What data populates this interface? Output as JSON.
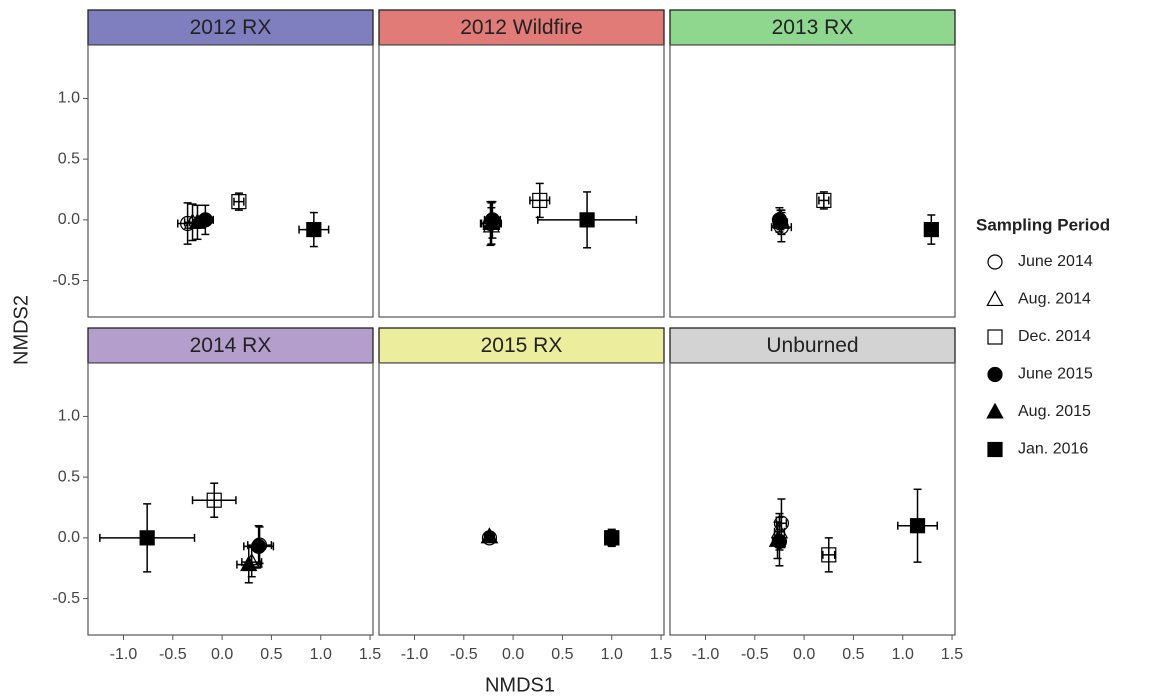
{
  "chart_data": {
    "type": "scatter",
    "x_label": "NMDS1",
    "y_label": "NMDS2",
    "legend_title": "Sampling Period",
    "legend_position": "right",
    "xlim": [
      -1.36,
      1.53
    ],
    "ylim": [
      -0.8,
      1.44
    ],
    "xticks": [
      {
        "value": -1.0,
        "label": "-1.0"
      },
      -0.5,
      {
        "value": 0.0,
        "label": "0.0"
      },
      0.5,
      {
        "value": 1.0,
        "label": "1.0"
      },
      1.5
    ],
    "yticks": [
      -0.5,
      {
        "value": 0.0,
        "label": "0.0"
      },
      0.5,
      {
        "value": 1.0,
        "label": "1.0"
      }
    ],
    "series": [
      {
        "name": "June 2014",
        "marker": "circle",
        "filled": false
      },
      {
        "name": "Aug. 2014",
        "marker": "triangle",
        "filled": false
      },
      {
        "name": "Dec. 2014",
        "marker": "square",
        "filled": false
      },
      {
        "name": "June 2015",
        "marker": "circle",
        "filled": true
      },
      {
        "name": "Aug. 2015",
        "marker": "triangle",
        "filled": true
      },
      {
        "name": "Jan. 2016",
        "marker": "square",
        "filled": true
      }
    ],
    "panels": [
      {
        "title": "2012 RX",
        "color": "#7f7fbf",
        "points": [
          {
            "x": -0.35,
            "y": -0.03,
            "xerr": 0.1,
            "yerr": 0.17
          },
          {
            "x": -0.3,
            "y": -0.02,
            "xerr": 0.08,
            "yerr": 0.15
          },
          {
            "x": 0.17,
            "y": 0.15,
            "xerr": 0.05,
            "yerr": 0.07
          },
          {
            "x": -0.17,
            "y": 0.0,
            "xerr": 0.08,
            "yerr": 0.12
          },
          {
            "x": -0.25,
            "y": -0.02,
            "xerr": 0.08,
            "yerr": 0.14
          },
          {
            "x": 0.93,
            "y": -0.08,
            "xerr": 0.15,
            "yerr": 0.14
          }
        ]
      },
      {
        "title": "2012 Wildfire",
        "color": "#e07b78",
        "points": [
          {
            "x": -0.23,
            "y": -0.03,
            "xerr": 0.1,
            "yerr": 0.18
          },
          {
            "x": -0.22,
            "y": -0.05,
            "xerr": 0.08,
            "yerr": 0.15
          },
          {
            "x": 0.27,
            "y": 0.16,
            "xerr": 0.1,
            "yerr": 0.14
          },
          {
            "x": -0.21,
            "y": 0.0,
            "xerr": 0.08,
            "yerr": 0.15
          },
          {
            "x": -0.22,
            "y": -0.03,
            "xerr": 0.1,
            "yerr": 0.17
          },
          {
            "x": 0.75,
            "y": 0.0,
            "xerr": 0.5,
            "yerr": 0.23
          }
        ]
      },
      {
        "title": "2013 RX",
        "color": "#8fd68f",
        "points": [
          {
            "x": -0.23,
            "y": -0.06,
            "xerr": 0.1,
            "yerr": 0.12
          },
          {
            "x": -0.23,
            "y": -0.02,
            "xerr": 0.06,
            "yerr": 0.1
          },
          {
            "x": 0.2,
            "y": 0.16,
            "xerr": 0.05,
            "yerr": 0.07
          },
          {
            "x": -0.25,
            "y": 0.0,
            "xerr": 0.06,
            "yerr": 0.1
          },
          {
            "x": -0.24,
            "y": 0.0,
            "xerr": 0.05,
            "yerr": 0.08
          },
          {
            "x": 1.29,
            "y": -0.08,
            "xerr": 0.05,
            "yerr": 0.12
          }
        ]
      },
      {
        "title": "2014 RX",
        "color": "#b49fcc",
        "points": [
          {
            "x": 0.38,
            "y": -0.06,
            "xerr": 0.12,
            "yerr": 0.15
          },
          {
            "x": 0.3,
            "y": -0.2,
            "xerr": 0.1,
            "yerr": 0.12
          },
          {
            "x": -0.08,
            "y": 0.31,
            "xerr": 0.22,
            "yerr": 0.14
          },
          {
            "x": 0.37,
            "y": -0.07,
            "xerr": 0.15,
            "yerr": 0.17
          },
          {
            "x": 0.27,
            "y": -0.22,
            "xerr": 0.12,
            "yerr": 0.15
          },
          {
            "x": -0.76,
            "y": 0.0,
            "xerr": 0.48,
            "yerr": 0.28
          }
        ]
      },
      {
        "title": "2015 RX",
        "color": "#eded9e",
        "points": [
          {
            "x": -0.24,
            "y": 0.0,
            "xerr": 0.04,
            "yerr": 0.03
          },
          {
            "x": -0.24,
            "y": 0.01,
            "xerr": 0.04,
            "yerr": 0.03
          },
          {
            "x": 1.0,
            "y": 0.0,
            "xerr": 0.05,
            "yerr": 0.06
          },
          {
            "x": 1.0,
            "y": 0.0,
            "xerr": 0.06,
            "yerr": 0.07
          },
          {
            "x": -0.24,
            "y": 0.01,
            "xerr": 0.05,
            "yerr": 0.03
          },
          {
            "x": 1.0,
            "y": 0.0,
            "xerr": 0.05,
            "yerr": 0.06
          }
        ]
      },
      {
        "title": "Unburned",
        "color": "#d3d3d3",
        "points": [
          {
            "x": -0.23,
            "y": 0.12,
            "xerr": 0.05,
            "yerr": 0.2
          },
          {
            "x": -0.25,
            "y": 0.05,
            "xerr": 0.05,
            "yerr": 0.15
          },
          {
            "x": 0.25,
            "y": -0.14,
            "xerr": 0.06,
            "yerr": 0.14
          },
          {
            "x": -0.25,
            "y": -0.03,
            "xerr": 0.05,
            "yerr": 0.2
          },
          {
            "x": -0.27,
            "y": -0.02,
            "xerr": 0.05,
            "yerr": 0.15
          },
          {
            "x": 1.15,
            "y": 0.1,
            "xerr": 0.2,
            "yerr": 0.3
          }
        ]
      }
    ]
  }
}
